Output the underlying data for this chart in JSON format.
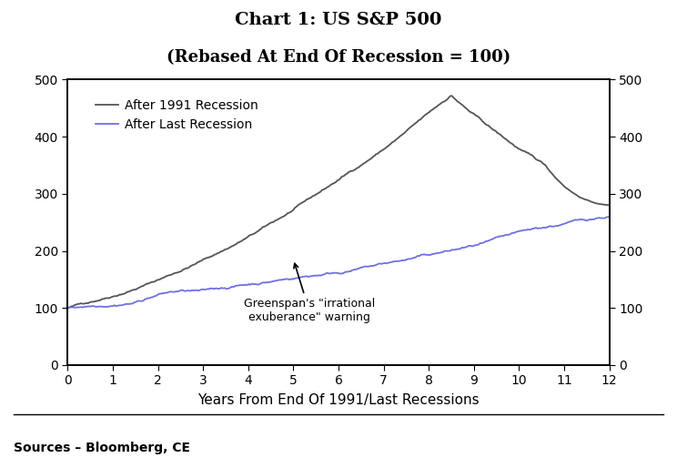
{
  "title_line1": "Chart 1: US S&P 500",
  "title_line2": "(Rebased At End Of Recession = 100)",
  "xlabel": "Years From End Of 1991/Last Recessions",
  "legend_1991": "After 1991 Recession",
  "legend_last": "After Last Recession",
  "annotation_text": "Greenspan's \"irrational\nexuberance\" warning",
  "color_1991": "#555555",
  "color_last": "#7070e0",
  "xlim": [
    0,
    12
  ],
  "ylim": [
    0,
    500
  ],
  "xticks": [
    0,
    1,
    2,
    3,
    4,
    5,
    6,
    7,
    8,
    9,
    10,
    11,
    12
  ],
  "yticks": [
    0,
    100,
    200,
    300,
    400,
    500
  ],
  "source_text": "Sources – Bloomberg, CE",
  "background_color": "#ffffff",
  "title_fontsize": 14,
  "subtitle_fontsize": 13,
  "axis_fontsize": 11
}
